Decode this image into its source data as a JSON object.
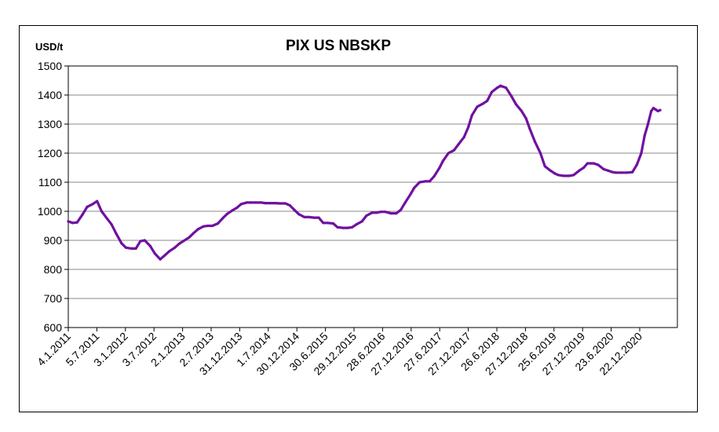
{
  "chart_data": {
    "type": "line",
    "title": "PIX US NBSKP",
    "ylabel": "USD/t",
    "xlabel": "",
    "ylim": [
      600,
      1500
    ],
    "yticks": [
      600,
      700,
      800,
      900,
      1000,
      1100,
      1200,
      1300,
      1400,
      1500
    ],
    "grid": true,
    "legend": "none",
    "line_color": "#7010a0",
    "x_tick_labels": [
      "4.1.2011",
      "5.7.2011",
      "3.1.2012",
      "3.7.2012",
      "2.1.2013",
      "2.7.2013",
      "31.12.2013",
      "1.7.2014",
      "30.12.2014",
      "30.6.2015",
      "29.12.2015",
      "28.6.2016",
      "27.12.2016",
      "27.6.2017",
      "27.12.2017",
      "26.6.2018",
      "27.12.2018",
      "25.6.2019",
      "27.12.2019",
      "23.6.2020",
      "22.12.2020"
    ],
    "series": [
      {
        "x": [
          "2011-01-04",
          "2011-02-01",
          "2011-03-01",
          "2011-04-05",
          "2011-05-03",
          "2011-06-07",
          "2011-07-05",
          "2011-08-02",
          "2011-09-06",
          "2011-10-04",
          "2011-11-01",
          "2011-12-06",
          "2012-01-03",
          "2012-02-07",
          "2012-03-06",
          "2012-04-03",
          "2012-05-01",
          "2012-06-05",
          "2012-07-03",
          "2012-08-07",
          "2012-09-04",
          "2012-10-02",
          "2012-11-06",
          "2012-12-04",
          "2013-01-02",
          "2013-02-05",
          "2013-03-05",
          "2013-04-02",
          "2013-05-07",
          "2013-06-04",
          "2013-07-02",
          "2013-08-06",
          "2013-09-03",
          "2013-10-01",
          "2013-11-05",
          "2013-12-03",
          "2013-12-31",
          "2014-02-04",
          "2014-03-04",
          "2014-04-01",
          "2014-05-06",
          "2014-06-03",
          "2014-07-01",
          "2014-08-05",
          "2014-09-02",
          "2014-10-07",
          "2014-11-04",
          "2014-12-02",
          "2014-12-30",
          "2015-02-03",
          "2015-03-03",
          "2015-04-07",
          "2015-05-05",
          "2015-06-02",
          "2015-06-30",
          "2015-08-04",
          "2015-09-01",
          "2015-10-06",
          "2015-11-03",
          "2015-12-01",
          "2015-12-29",
          "2016-02-02",
          "2016-03-01",
          "2016-04-05",
          "2016-05-03",
          "2016-05-31",
          "2016-06-28",
          "2016-08-02",
          "2016-09-06",
          "2016-10-04",
          "2016-11-01",
          "2016-12-06",
          "2016-12-27",
          "2017-01-31",
          "2017-03-07",
          "2017-04-04",
          "2017-05-02",
          "2017-06-06",
          "2017-06-27",
          "2017-08-01",
          "2017-09-05",
          "2017-10-03",
          "2017-11-07",
          "2017-12-05",
          "2017-12-27",
          "2018-01-30",
          "2018-03-06",
          "2018-04-03",
          "2018-05-01",
          "2018-06-05",
          "2018-06-26",
          "2018-07-31",
          "2018-09-04",
          "2018-10-02",
          "2018-11-06",
          "2018-12-04",
          "2018-12-27",
          "2019-01-29",
          "2019-03-05",
          "2019-04-02",
          "2019-05-07",
          "2019-06-04",
          "2019-06-25",
          "2019-07-30",
          "2019-09-03",
          "2019-10-01",
          "2019-11-05",
          "2019-12-03",
          "2019-12-27",
          "2020-02-04",
          "2020-03-03",
          "2020-04-07",
          "2020-05-05",
          "2020-06-02",
          "2020-06-23",
          "2020-07-28",
          "2020-09-01",
          "2020-10-06",
          "2020-11-03",
          "2020-12-01",
          "2020-12-22",
          "2021-01-12",
          "2021-02-02",
          "2021-02-16",
          "2021-03-02",
          "2021-03-16",
          "2021-03-30"
        ],
        "values": [
          965,
          960,
          962,
          990,
          1015,
          1025,
          1035,
          1000,
          975,
          955,
          925,
          890,
          875,
          872,
          872,
          897,
          900,
          880,
          855,
          835,
          848,
          862,
          875,
          888,
          898,
          910,
          925,
          938,
          948,
          950,
          950,
          958,
          975,
          990,
          1003,
          1012,
          1025,
          1030,
          1030,
          1030,
          1030,
          1028,
          1028,
          1028,
          1027,
          1027,
          1020,
          1005,
          990,
          980,
          980,
          978,
          978,
          960,
          960,
          958,
          945,
          943,
          943,
          945,
          955,
          965,
          985,
          995,
          995,
          998,
          998,
          993,
          993,
          1005,
          1030,
          1060,
          1080,
          1100,
          1103,
          1103,
          1120,
          1150,
          1173,
          1200,
          1210,
          1230,
          1255,
          1290,
          1330,
          1360,
          1370,
          1380,
          1410,
          1425,
          1432,
          1425,
          1395,
          1368,
          1345,
          1320,
          1285,
          1240,
          1200,
          1155,
          1140,
          1130,
          1125,
          1122,
          1122,
          1125,
          1140,
          1150,
          1165,
          1165,
          1160,
          1145,
          1140,
          1135,
          1133,
          1133,
          1133,
          1135,
          1160,
          1200,
          1260,
          1300,
          1345,
          1355,
          1350,
          1345,
          1348
        ]
      }
    ]
  }
}
